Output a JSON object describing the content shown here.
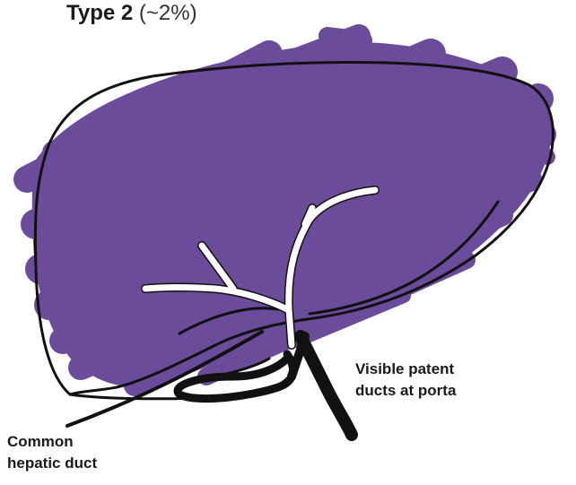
{
  "title": {
    "type_label": "Type 2",
    "percentage": "(~2%)"
  },
  "labels": {
    "patent_ducts": [
      "Visible patent",
      "ducts at porta"
    ],
    "common_hepatic_duct": [
      "Common",
      "hepatic duct"
    ]
  },
  "colors": {
    "liver_fill": "#6b4c9a",
    "outline": "#111111",
    "ducts": "#ffffff"
  }
}
